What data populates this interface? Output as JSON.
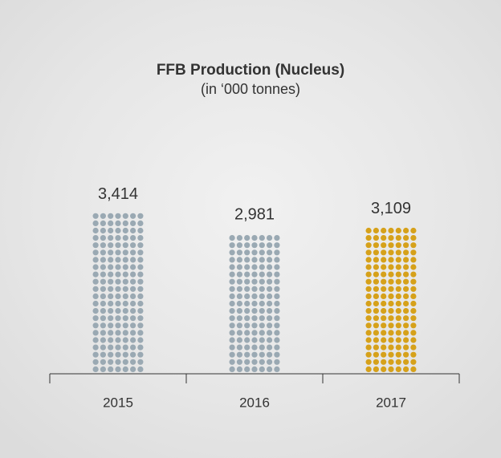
{
  "chart_data": {
    "type": "dotbar",
    "title": "FFB Production (Nucleus)",
    "subtitle": "(in ‘000 tonnes)",
    "categories": [
      "2015",
      "2016",
      "2017"
    ],
    "values": [
      3414,
      2981,
      3109
    ],
    "value_labels": [
      "3,414",
      "2,981",
      "3,109"
    ],
    "colors": [
      "#9aa9b3",
      "#9aa9b3",
      "#d6a11a"
    ],
    "ylim": [
      0,
      4000
    ]
  }
}
